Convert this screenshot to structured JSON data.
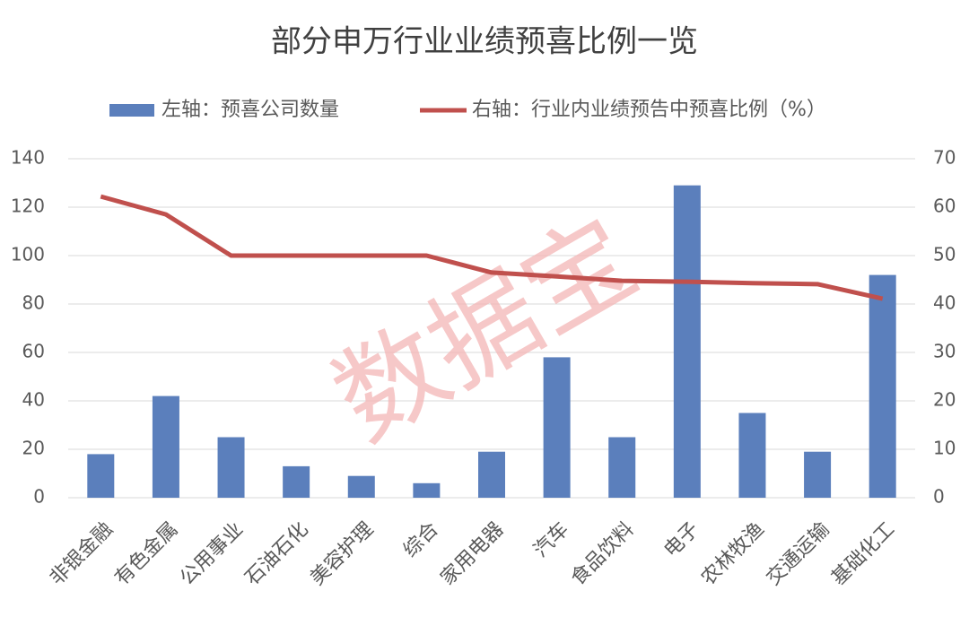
{
  "chart_data": {
    "type": "bar-line",
    "title": "部分申万行业业绩预喜比例一览",
    "watermark": "数据宝",
    "categories": [
      "非银金融",
      "有色金属",
      "公用事业",
      "石油石化",
      "美容护理",
      "综合",
      "家用电器",
      "汽车",
      "食品饮料",
      "电子",
      "农林牧渔",
      "交通运输",
      "基础化工"
    ],
    "series": [
      {
        "name": "左轴：预喜公司数量",
        "color": "#5b7fbc",
        "type": "bar",
        "axis": "y",
        "values": [
          18,
          42,
          25,
          13,
          9,
          6,
          19,
          58,
          25,
          129,
          35,
          19,
          92
        ]
      },
      {
        "name": "右轴：行业内业绩预告中预喜比例（%）",
        "color": "#c0504d",
        "type": "line",
        "axis": "y2",
        "values": [
          62.2,
          58.5,
          50,
          50,
          50,
          50,
          46.5,
          45.7,
          44.8,
          44.6,
          44.3,
          44.1,
          41.1
        ]
      }
    ],
    "ylim": [
      0,
      140
    ],
    "yticks": [
      0,
      20,
      40,
      60,
      80,
      100,
      120,
      140
    ],
    "y2lim": [
      0,
      70
    ],
    "y2ticks": [
      0,
      10,
      20,
      30,
      40,
      50,
      60,
      70
    ],
    "grid": true
  }
}
